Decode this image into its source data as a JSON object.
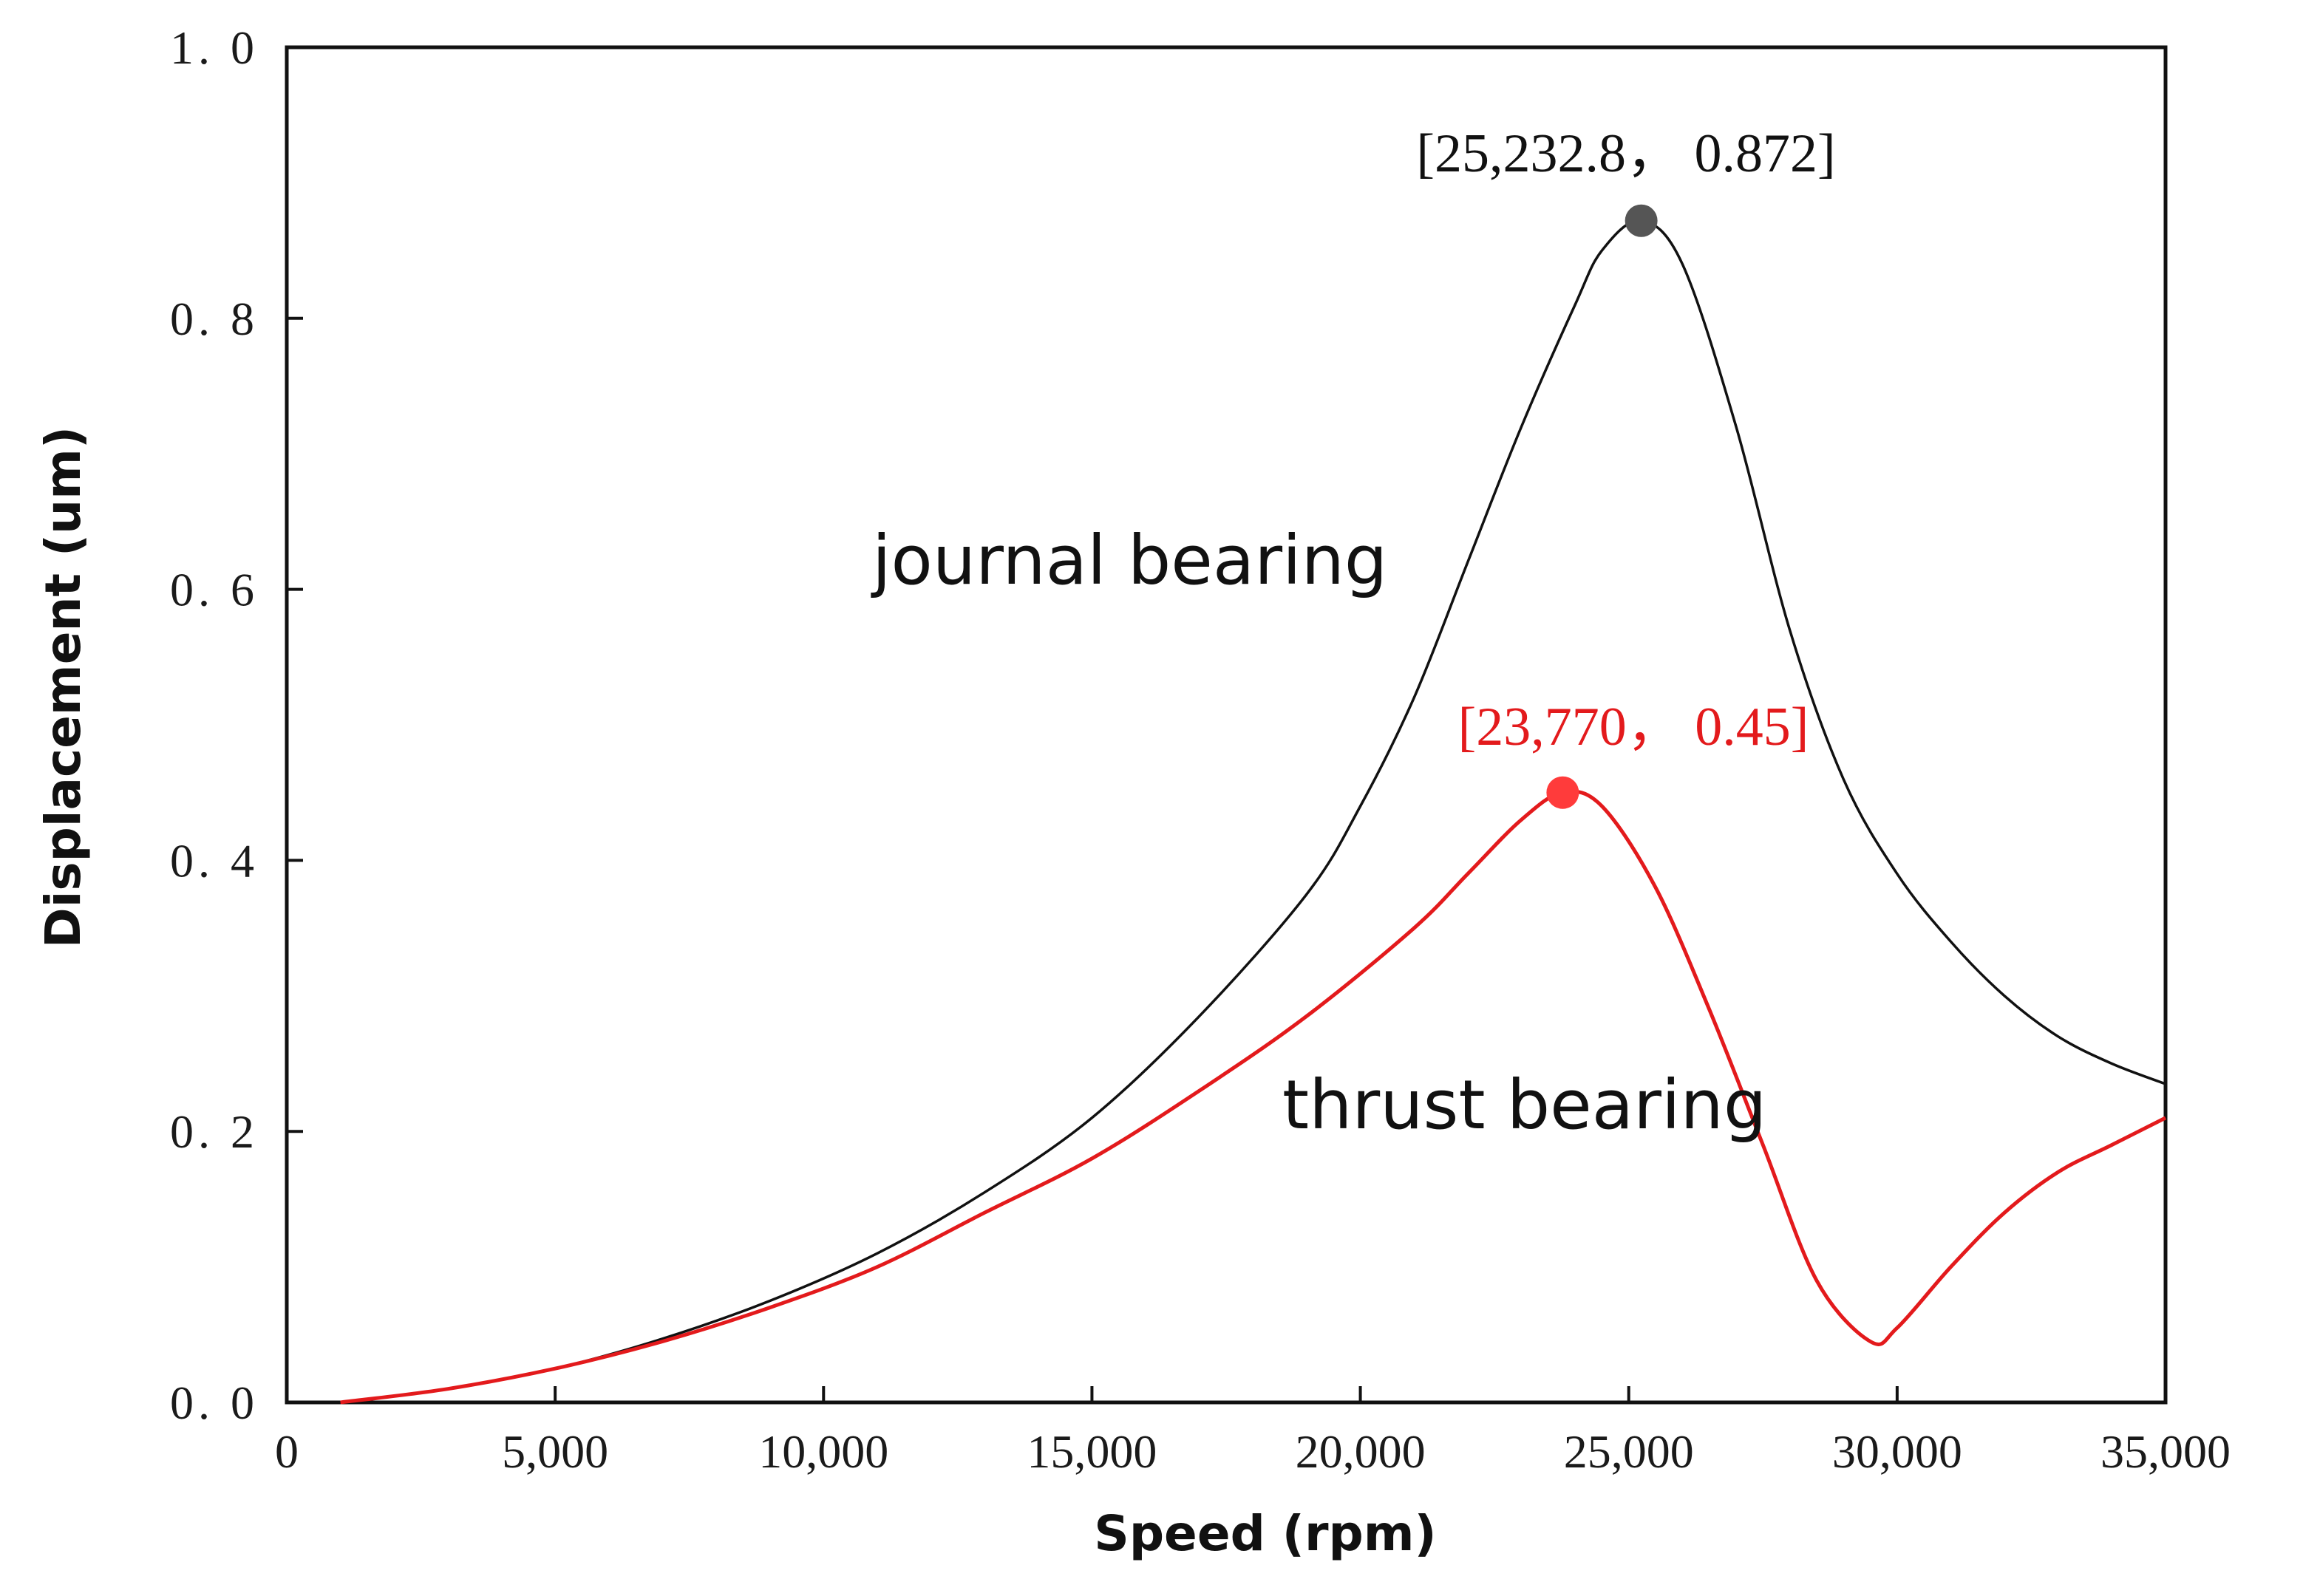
{
  "chart_data": {
    "type": "line",
    "title": "",
    "xlabel": "Speed (rpm)",
    "ylabel": "Displacement (um)",
    "xlim": [
      0,
      35000
    ],
    "ylim": [
      0,
      1.0
    ],
    "grid": false,
    "x_ticks": [
      0,
      5000,
      10000,
      15000,
      20000,
      25000,
      30000,
      35000
    ],
    "x_tick_labels": [
      "0",
      "5,000",
      "10,000",
      "15,000",
      "20,000",
      "25,000",
      "30,000",
      "35,000"
    ],
    "y_ticks": [
      0.0,
      0.2,
      0.4,
      0.6,
      0.8,
      1.0
    ],
    "y_tick_labels": [
      "0. 0",
      "0. 2",
      "0. 4",
      "0. 6",
      "0. 8",
      "1. 0"
    ],
    "series": [
      {
        "name": "journal bearing",
        "color": "#111111",
        "x": [
          1000,
          3000,
          5000,
          7000,
          9000,
          11000,
          13000,
          15000,
          17000,
          19000,
          20000,
          21000,
          22000,
          23000,
          24000,
          24500,
          25232.8,
          26000,
          27000,
          28000,
          29000,
          30000,
          31000,
          32000,
          33000,
          34000,
          35000
        ],
        "y": [
          0.0,
          0.01,
          0.025,
          0.047,
          0.075,
          0.11,
          0.155,
          0.21,
          0.285,
          0.375,
          0.44,
          0.52,
          0.62,
          0.72,
          0.81,
          0.85,
          0.872,
          0.84,
          0.72,
          0.57,
          0.46,
          0.39,
          0.34,
          0.3,
          0.27,
          0.25,
          0.235
        ],
        "peak": {
          "x": 25232.8,
          "y": 0.872,
          "label": "[25,232.8， 0.872]"
        }
      },
      {
        "name": "thrust bearing",
        "color": "#e31a1c",
        "x": [
          1000,
          3000,
          5000,
          7000,
          9000,
          11000,
          13000,
          15000,
          17000,
          19000,
          21000,
          22000,
          23000,
          23770,
          24500,
          25500,
          26500,
          27500,
          28500,
          29500,
          30000,
          31000,
          32000,
          33000,
          34000,
          35000
        ],
        "y": [
          0.0,
          0.01,
          0.025,
          0.045,
          0.07,
          0.1,
          0.14,
          0.18,
          0.23,
          0.285,
          0.35,
          0.39,
          0.43,
          0.45,
          0.44,
          0.38,
          0.29,
          0.19,
          0.09,
          0.045,
          0.055,
          0.1,
          0.14,
          0.17,
          0.19,
          0.21
        ],
        "peak": {
          "x": 23770,
          "y": 0.45,
          "label": "[23,770， 0.45]"
        }
      }
    ]
  }
}
